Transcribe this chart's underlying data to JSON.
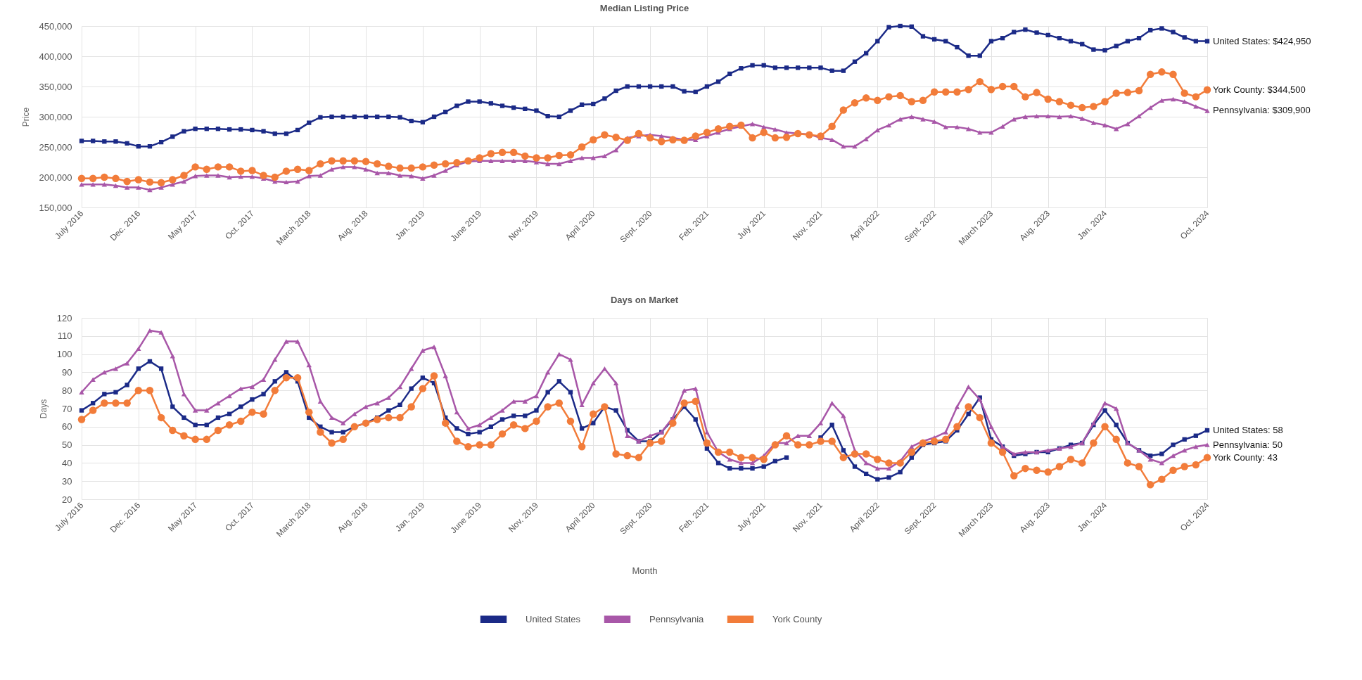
{
  "chart_data": [
    {
      "type": "line",
      "title": "Median Listing Price",
      "ylabel": "Price",
      "categories": [
        "July 2016",
        null,
        null,
        null,
        null,
        "Dec. 2016",
        null,
        null,
        null,
        null,
        "May 2017",
        null,
        null,
        null,
        null,
        "Oct. 2017",
        null,
        null,
        null,
        null,
        "March 2018",
        null,
        null,
        null,
        null,
        "Aug. 2018",
        null,
        null,
        null,
        null,
        "Jan. 2019",
        null,
        null,
        null,
        null,
        "June 2019",
        null,
        null,
        null,
        null,
        "Nov. 2019",
        null,
        null,
        null,
        null,
        "April 2020",
        null,
        null,
        null,
        null,
        "Sept. 2020",
        null,
        null,
        null,
        null,
        "Feb. 2021",
        null,
        null,
        null,
        null,
        "July 2021",
        null,
        null,
        null,
        null,
        "Nov. 2021",
        null,
        null,
        null,
        null,
        "April 2022",
        null,
        null,
        null,
        null,
        "Sept. 2022",
        null,
        null,
        null,
        null,
        "March 2023",
        null,
        null,
        null,
        null,
        "Aug. 2023",
        null,
        null,
        null,
        null,
        "Jan. 2024",
        null,
        null,
        null,
        null,
        null,
        null,
        null,
        null,
        "Oct. 2024"
      ],
      "series": [
        {
          "name": "United States",
          "color": "#1b2a87",
          "marker": "square",
          "values": [
            260000,
            260000,
            259000,
            259000,
            256000,
            251000,
            251000,
            258000,
            267000,
            276000,
            280000,
            280000,
            280000,
            279000,
            279000,
            278000,
            276000,
            272000,
            272000,
            278000,
            290000,
            299000,
            300000,
            300000,
            300000,
            300000,
            300000,
            300000,
            299000,
            293000,
            291000,
            300000,
            308000,
            318000,
            325000,
            325000,
            322000,
            318000,
            315000,
            313000,
            310000,
            301000,
            300000,
            310000,
            320000,
            321000,
            330000,
            343000,
            350000,
            350000,
            350000,
            350000,
            350000,
            342000,
            341000,
            350000,
            358000,
            371000,
            380000,
            385000,
            385000,
            381000,
            381000,
            381000,
            381000,
            381000,
            376000,
            376000,
            391000,
            405000,
            425000,
            448000,
            450000,
            449000,
            433000,
            428000,
            425000,
            415000,
            401000,
            401000,
            425000,
            430000,
            440000,
            444000,
            439000,
            435000,
            430000,
            425000,
            420000,
            411000,
            410000,
            417000,
            425000,
            430000,
            443000,
            446000,
            440000,
            431000,
            425000,
            424950
          ]
        },
        {
          "name": "Pennsylvania",
          "color": "#a857a8",
          "marker": "triangle",
          "values": [
            188000,
            188000,
            188000,
            186000,
            183000,
            183000,
            179000,
            183000,
            188000,
            193000,
            202000,
            203000,
            203000,
            200000,
            201000,
            201000,
            198000,
            193000,
            192000,
            193000,
            202000,
            203000,
            213000,
            217000,
            217000,
            213000,
            207000,
            207000,
            203000,
            202000,
            198000,
            203000,
            211000,
            220000,
            226000,
            227000,
            227000,
            227000,
            227000,
            227000,
            225000,
            222000,
            222000,
            227000,
            232000,
            232000,
            235000,
            245000,
            265000,
            268000,
            270000,
            268000,
            265000,
            262000,
            262000,
            268000,
            274000,
            280000,
            284000,
            288000,
            283000,
            279000,
            274000,
            272000,
            271000,
            265000,
            262000,
            251000,
            251000,
            263000,
            278000,
            286000,
            296000,
            300000,
            296000,
            292000,
            283000,
            283000,
            280000,
            274000,
            274000,
            284000,
            296000,
            300000,
            301000,
            301000,
            300000,
            301000,
            297000,
            290000,
            286000,
            280000,
            288000,
            301000,
            315000,
            327000,
            329000,
            325000,
            317000,
            309900
          ]
        },
        {
          "name": "York County",
          "color": "#f27c3a",
          "marker": "circle",
          "values": [
            198000,
            198000,
            200000,
            198000,
            193000,
            196000,
            192000,
            191000,
            196000,
            203000,
            217000,
            213000,
            217000,
            217000,
            210000,
            211000,
            203000,
            200000,
            210000,
            213000,
            211000,
            222000,
            227000,
            227000,
            227000,
            226000,
            222000,
            218000,
            215000,
            215000,
            217000,
            220000,
            222000,
            224000,
            227000,
            232000,
            239000,
            241000,
            241000,
            235000,
            232000,
            232000,
            236000,
            237000,
            250000,
            262000,
            270000,
            266000,
            261000,
            272000,
            265000,
            259000,
            262000,
            261000,
            268000,
            274000,
            280000,
            284000,
            286000,
            265000,
            274000,
            265000,
            266000,
            272000,
            270000,
            268000,
            284000,
            311000,
            323000,
            331000,
            327000,
            333000,
            335000,
            325000,
            327000,
            341000,
            341000,
            341000,
            345000,
            358000,
            345000,
            350000,
            350000,
            333000,
            340000,
            329000,
            325000,
            319000,
            315000,
            317000,
            325000,
            339000,
            340000,
            343000,
            370000,
            374000,
            370000,
            339000,
            333000,
            344500
          ]
        }
      ],
      "ylim": [
        150000,
        450000
      ],
      "yticks": [
        {
          "value": 150000,
          "label": "150,000"
        },
        {
          "value": 200000,
          "label": "200,000"
        },
        {
          "value": 250000,
          "label": "250,000"
        },
        {
          "value": 300000,
          "label": "300,000"
        },
        {
          "value": 350000,
          "label": "350,000"
        },
        {
          "value": 400000,
          "label": "400,000"
        },
        {
          "value": 450000,
          "label": "450,000"
        }
      ],
      "grid": true,
      "line_style": "solid",
      "legend": "bottom",
      "annotations": [
        {
          "text": "United States: $424,950",
          "x": "Oct. 2024",
          "y": 424950
        },
        {
          "text": "York County: $344,500",
          "x": "Oct. 2024",
          "y": 344500
        },
        {
          "text": "Pennsylvania: $309,900",
          "x": "Oct. 2024",
          "y": 309900
        }
      ]
    },
    {
      "type": "line",
      "title": "Days on Market",
      "ylabel": "Days",
      "xlabel": "Month",
      "legend": "bottom",
      "categories": [
        "July 2016",
        null,
        null,
        null,
        null,
        "Dec. 2016",
        null,
        null,
        null,
        null,
        "May 2017",
        null,
        null,
        null,
        null,
        "Oct. 2017",
        null,
        null,
        null,
        null,
        "March 2018",
        null,
        null,
        null,
        null,
        "Aug. 2018",
        null,
        null,
        null,
        null,
        "Jan. 2019",
        null,
        null,
        null,
        null,
        "June 2019",
        null,
        null,
        null,
        null,
        "Nov. 2019",
        null,
        null,
        null,
        null,
        "April 2020",
        null,
        null,
        null,
        null,
        "Sept. 2020",
        null,
        null,
        null,
        null,
        "Feb. 2021",
        null,
        null,
        null,
        null,
        "July 2021",
        null,
        null,
        null,
        null,
        "Nov. 2021",
        null,
        null,
        null,
        null,
        "April 2022",
        null,
        null,
        null,
        null,
        "Sept. 2022",
        null,
        null,
        null,
        null,
        "March 2023",
        null,
        null,
        null,
        null,
        "Aug. 2023",
        null,
        null,
        null,
        null,
        "Jan. 2024",
        null,
        null,
        null,
        null,
        null,
        null,
        null,
        null,
        "Oct. 2024"
      ],
      "series": [
        {
          "name": "United States",
          "color": "#1b2a87",
          "marker": "square",
          "values": [
            69,
            73,
            78,
            79,
            83,
            92,
            96,
            92,
            71,
            65,
            61,
            61,
            65,
            67,
            71,
            75,
            78,
            85,
            90,
            85,
            65,
            60,
            57,
            57,
            60,
            62,
            65,
            69,
            72,
            81,
            87,
            84,
            65,
            59,
            56,
            57,
            60,
            64,
            66,
            66,
            69,
            79,
            85,
            79,
            59,
            62,
            71,
            69,
            58,
            52,
            52,
            57,
            64,
            71,
            64,
            48,
            40,
            37,
            37,
            37,
            38,
            41,
            43,
            null,
            null,
            54,
            61,
            47,
            38,
            34,
            31,
            32,
            35,
            43,
            50,
            51,
            52,
            58,
            67,
            76,
            53,
            49,
            44,
            45,
            46,
            46,
            48,
            50,
            51,
            61,
            69,
            61,
            51,
            47,
            44,
            45,
            50,
            53,
            55,
            58
          ]
        },
        {
          "name": "Pennsylvania",
          "color": "#a857a8",
          "marker": "triangle",
          "values": [
            79,
            86,
            90,
            92,
            95,
            103,
            113,
            112,
            99,
            78,
            69,
            69,
            73,
            77,
            81,
            82,
            86,
            97,
            107,
            107,
            94,
            74,
            65,
            62,
            67,
            71,
            73,
            76,
            82,
            92,
            102,
            104,
            88,
            68,
            59,
            61,
            65,
            69,
            74,
            74,
            77,
            90,
            100,
            97,
            72,
            84,
            92,
            84,
            55,
            52,
            55,
            57,
            65,
            80,
            81,
            57,
            46,
            42,
            40,
            40,
            44,
            51,
            51,
            55,
            55,
            62,
            73,
            66,
            47,
            40,
            37,
            37,
            41,
            49,
            52,
            54,
            57,
            71,
            82,
            75,
            60,
            49,
            45,
            46,
            46,
            47,
            48,
            49,
            51,
            62,
            73,
            70,
            51,
            47,
            42,
            40,
            44,
            47,
            49,
            50
          ]
        },
        {
          "name": "York County",
          "color": "#f27c3a",
          "marker": "circle",
          "values": [
            64,
            69,
            73,
            73,
            73,
            80,
            80,
            65,
            58,
            55,
            53,
            53,
            58,
            61,
            63,
            68,
            67,
            80,
            87,
            87,
            68,
            57,
            51,
            53,
            60,
            62,
            64,
            65,
            65,
            71,
            81,
            88,
            62,
            52,
            49,
            50,
            50,
            56,
            61,
            59,
            63,
            71,
            73,
            63,
            49,
            67,
            71,
            45,
            44,
            43,
            51,
            52,
            62,
            73,
            74,
            51,
            46,
            46,
            43,
            43,
            42,
            50,
            55,
            50,
            50,
            52,
            52,
            43,
            45,
            45,
            42,
            40,
            40,
            46,
            51,
            52,
            53,
            60,
            71,
            65,
            51,
            46,
            33,
            37,
            36,
            35,
            38,
            42,
            40,
            51,
            60,
            53,
            40,
            38,
            28,
            31,
            36,
            38,
            39,
            43
          ]
        }
      ],
      "ylim": [
        20,
        120
      ],
      "yticks": [
        20,
        30,
        40,
        50,
        60,
        70,
        80,
        90,
        100,
        110,
        120
      ],
      "grid": true,
      "line_style": "solid",
      "annotations": [
        {
          "text": "United States: 58",
          "x": "Oct. 2024",
          "y": 58
        },
        {
          "text": "Pennsylvania: 50",
          "x": "Oct. 2024",
          "y": 50
        },
        {
          "text": "York County: 43",
          "x": "Oct. 2024",
          "y": 43
        }
      ]
    }
  ]
}
